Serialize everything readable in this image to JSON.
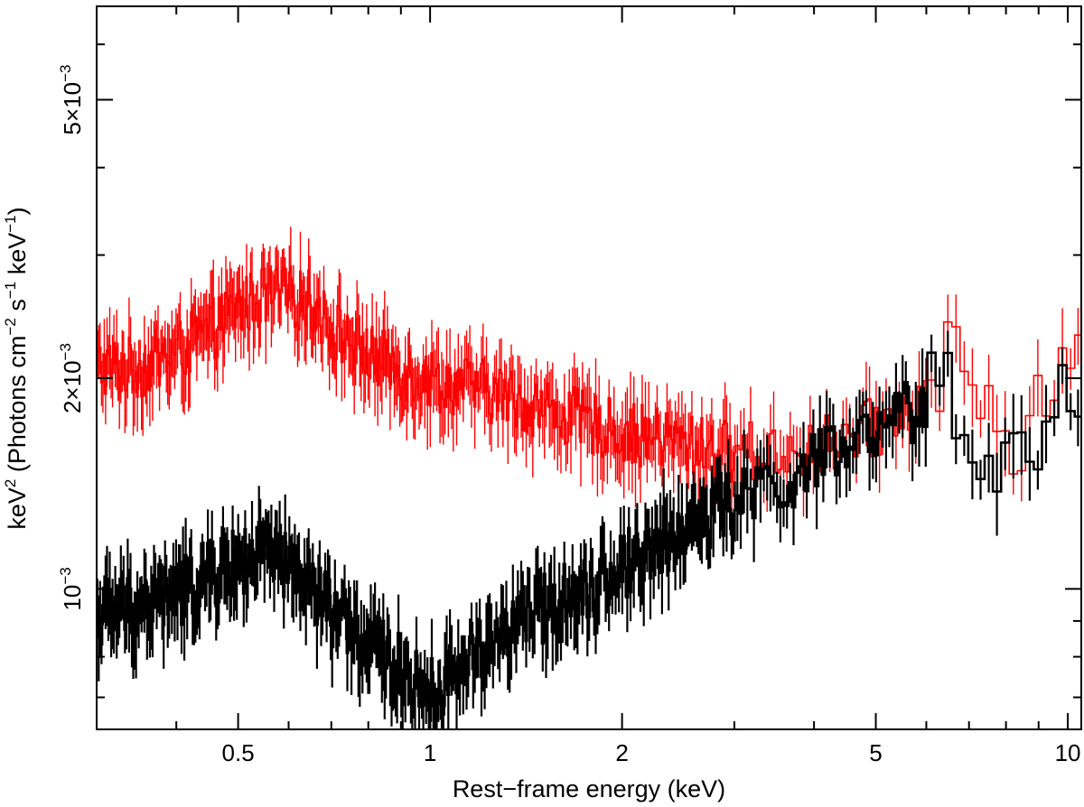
{
  "chart_data": {
    "type": "line",
    "xlabel": "Rest−frame energy (keV)",
    "ylabel": {
      "base": "keV",
      "sup1": "2",
      "mid1": " (Photons cm",
      "sup2": "−2",
      "mid2": " s",
      "sup3": "−1",
      "mid3": " keV",
      "sup4": "−1",
      "end": ")"
    },
    "xscale": "log",
    "yscale": "log",
    "xlim": [
      0.3,
      10.5
    ],
    "ylim": [
      0.00063,
      0.0068
    ],
    "x_ticks": [
      {
        "value": 0.5,
        "label": "0.5"
      },
      {
        "value": 1,
        "label": "1"
      },
      {
        "value": 2,
        "label": "2"
      },
      {
        "value": 5,
        "label": "5"
      },
      {
        "value": 10,
        "label": "10"
      }
    ],
    "y_ticks": [
      {
        "value": 0.001,
        "mant": "10",
        "exp": "−3"
      },
      {
        "value": 0.002,
        "mant": "2×10",
        "exp": "−3"
      },
      {
        "value": 0.005,
        "mant": "5×10",
        "exp": "−3"
      }
    ],
    "grid": false,
    "series": [
      {
        "color": "#ff0000",
        "noise": 0.045,
        "x": [
          0.3,
          0.35,
          0.4,
          0.45,
          0.5,
          0.55,
          0.6,
          0.65,
          0.7,
          0.8,
          0.9,
          1.0,
          1.2,
          1.4,
          1.6,
          1.8,
          2.0,
          2.3,
          2.6,
          3.0,
          3.5,
          4.0,
          4.5,
          5.0,
          5.5,
          6.0,
          6.3,
          6.5,
          6.8,
          7.2,
          7.6,
          8.0,
          8.5,
          9.0,
          9.5,
          10.0,
          10.5
        ],
        "y": [
          0.00208,
          0.00207,
          0.00218,
          0.00232,
          0.00252,
          0.00262,
          0.00262,
          0.00258,
          0.00236,
          0.00216,
          0.00206,
          0.00199,
          0.00193,
          0.00185,
          0.00178,
          0.00172,
          0.00167,
          0.00164,
          0.0016,
          0.00157,
          0.00157,
          0.00159,
          0.00163,
          0.0017,
          0.00178,
          0.00188,
          0.00205,
          0.0022,
          0.00212,
          0.002,
          0.00178,
          0.00165,
          0.00158,
          0.00178,
          0.00202,
          0.0021,
          0.0022
        ]
      },
      {
        "color": "#000000",
        "noise": 0.05,
        "x": [
          0.3,
          0.35,
          0.4,
          0.45,
          0.5,
          0.55,
          0.6,
          0.65,
          0.7,
          0.75,
          0.8,
          0.85,
          0.9,
          0.95,
          1.0,
          1.05,
          1.1,
          1.2,
          1.4,
          1.6,
          1.8,
          2.0,
          2.5,
          3.0,
          3.5,
          4.0,
          4.5,
          5.0,
          5.5,
          6.0,
          6.3,
          6.5,
          6.8,
          7.2,
          7.6,
          8.0,
          8.5,
          9.0,
          9.5,
          10.0,
          10.5
        ],
        "y": [
          0.00092,
          0.00095,
          0.00098,
          0.00104,
          0.00109,
          0.00112,
          0.00107,
          0.001,
          0.00093,
          0.00087,
          0.00083,
          0.0008,
          0.00077,
          0.00073,
          0.00071,
          0.00073,
          0.00077,
          0.00083,
          0.0009,
          0.00097,
          0.00102,
          0.00108,
          0.00122,
          0.00133,
          0.00141,
          0.0015,
          0.00158,
          0.00165,
          0.00175,
          0.00185,
          0.00195,
          0.00188,
          0.00175,
          0.00163,
          0.00154,
          0.0015,
          0.00152,
          0.00168,
          0.00188,
          0.00195,
          0.0018
        ]
      }
    ]
  }
}
